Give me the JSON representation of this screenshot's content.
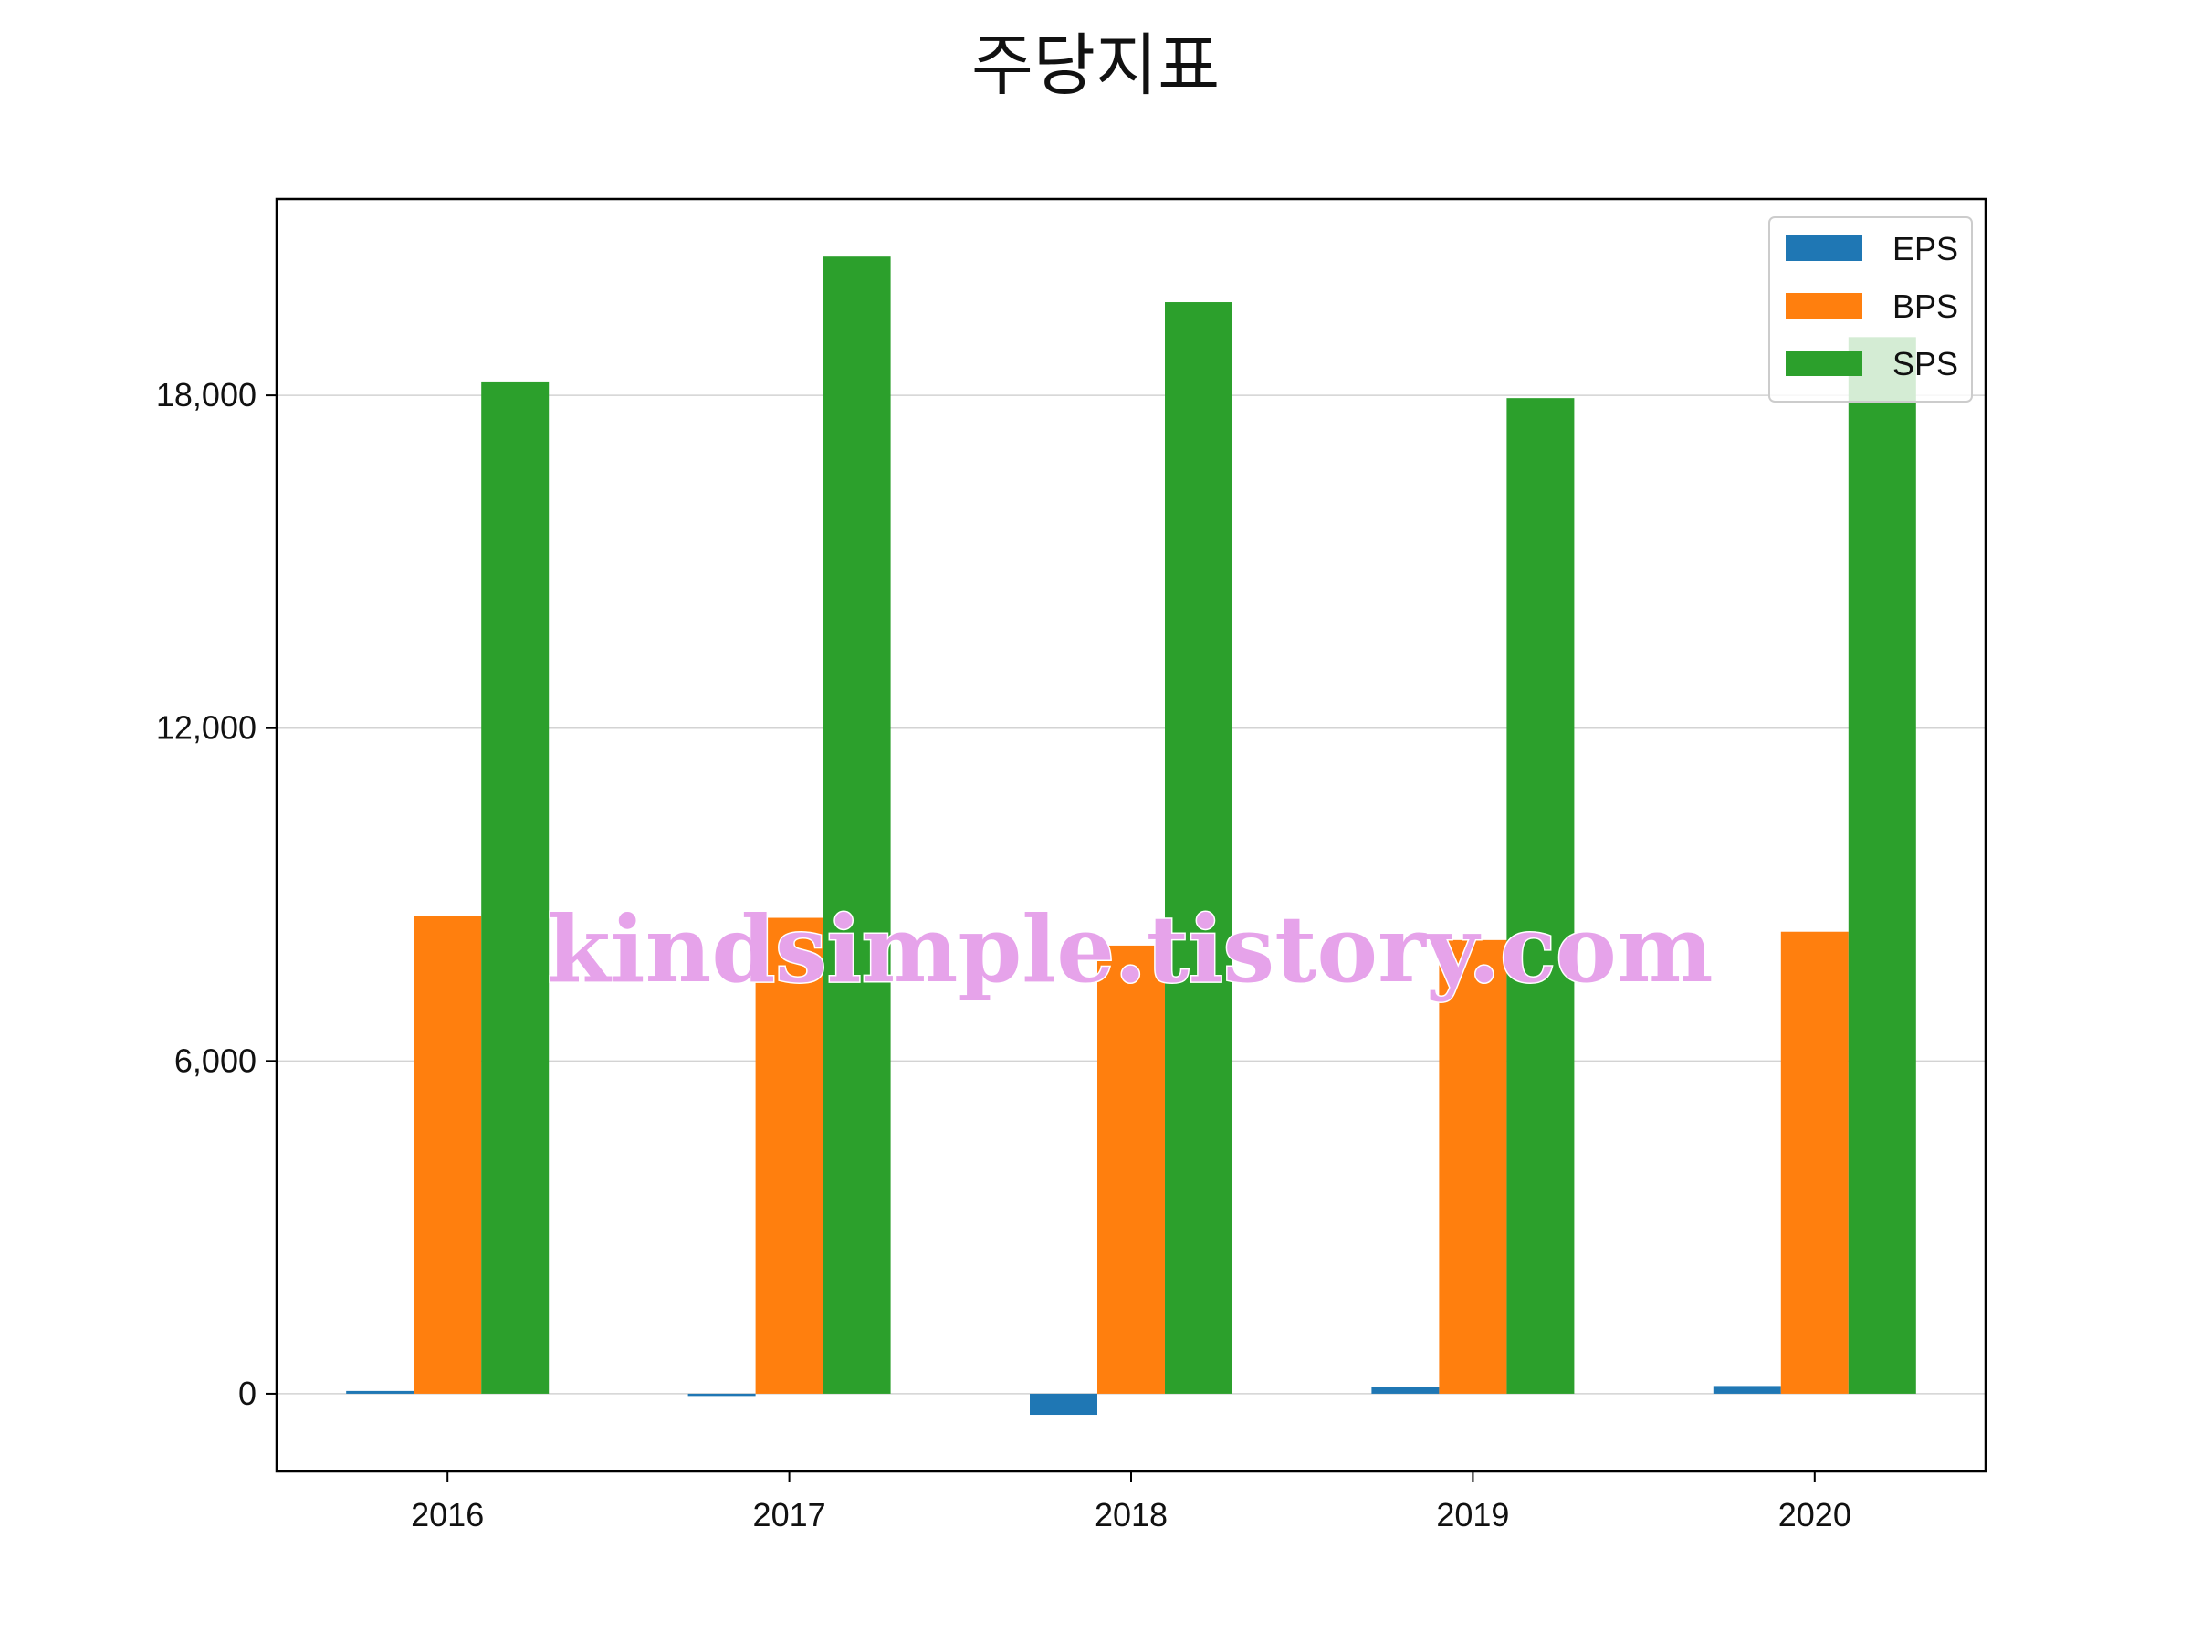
{
  "page": {
    "title": "주당지표",
    "watermark": "kindsimple.tistory.com"
  },
  "colors": {
    "EPS": "#1f77b4",
    "BPS": "#ff7f0e",
    "SPS": "#2ca02c",
    "grid": "#d3d3d3",
    "axis": "#000000"
  },
  "chart_data": {
    "type": "bar",
    "title": "주당지표",
    "xlabel": "",
    "ylabel": "",
    "categories": [
      "2016",
      "2017",
      "2018",
      "2019",
      "2020"
    ],
    "series": [
      {
        "name": "EPS",
        "values": [
          50,
          -40,
          -380,
          120,
          140
        ]
      },
      {
        "name": "BPS",
        "values": [
          8620,
          8580,
          8080,
          8180,
          8330
        ]
      },
      {
        "name": "SPS",
        "values": [
          18250,
          20500,
          19680,
          17950,
          19050
        ]
      }
    ],
    "yticks": [
      0,
      6000,
      12000,
      18000
    ],
    "ytick_labels": [
      "0",
      "6,000",
      "12,000",
      "18,000"
    ],
    "ylim": [
      -1400,
      21540
    ],
    "grid": "y",
    "legend_position": "top-right"
  }
}
